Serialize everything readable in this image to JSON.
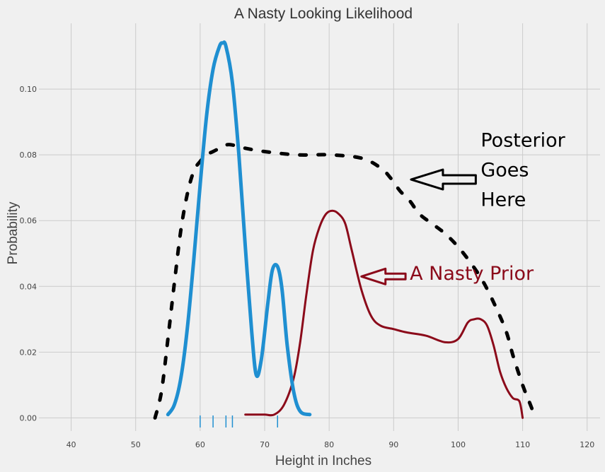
{
  "chart_data": {
    "type": "line",
    "title": "A Nasty Looking Likelihood",
    "xlabel": "Height in Inches",
    "ylabel": "Probability",
    "xlim": [
      35,
      122
    ],
    "ylim": [
      -0.004,
      0.12
    ],
    "grid": true,
    "xticks": [
      40,
      50,
      60,
      70,
      80,
      90,
      100,
      110,
      120
    ],
    "yticks": [
      0.0,
      0.02,
      0.04,
      0.06,
      0.08,
      0.1
    ],
    "ytick_labels": [
      "0.00",
      "0.02",
      "0.04",
      "0.06",
      "0.08",
      "0.10"
    ],
    "series": [
      {
        "style": "solid-blue",
        "color": "#1f8fd1",
        "x": [
          55,
          56,
          57,
          58,
          59,
          60,
          61,
          62,
          63,
          63.5,
          64,
          65,
          66,
          67,
          68,
          68.7,
          69.5,
          70.5,
          71.2,
          72,
          72.7,
          73.5,
          74.5,
          75.5,
          77
        ],
        "y": [
          0.001,
          0.004,
          0.012,
          0.027,
          0.048,
          0.071,
          0.092,
          0.106,
          0.113,
          0.114,
          0.113,
          0.102,
          0.08,
          0.052,
          0.026,
          0.013,
          0.018,
          0.035,
          0.045,
          0.046,
          0.039,
          0.022,
          0.008,
          0.002,
          0.001
        ]
      },
      {
        "style": "dashed-black",
        "color": "#000000",
        "x": [
          53,
          54,
          55,
          56,
          57,
          58,
          59,
          60,
          61,
          62,
          63,
          64,
          65,
          67,
          70,
          75,
          80,
          85,
          88,
          89.5,
          91,
          92.5,
          94,
          96,
          98,
          100,
          102,
          104,
          106,
          107.5,
          108.5,
          110,
          111,
          112
        ],
        "y": [
          0.0,
          0.008,
          0.024,
          0.041,
          0.057,
          0.068,
          0.075,
          0.078,
          0.08,
          0.081,
          0.082,
          0.083,
          0.083,
          0.082,
          0.081,
          0.08,
          0.08,
          0.079,
          0.076,
          0.073,
          0.069,
          0.066,
          0.062,
          0.059,
          0.056,
          0.052,
          0.047,
          0.041,
          0.033,
          0.026,
          0.019,
          0.01,
          0.005,
          0.0
        ]
      },
      {
        "style": "solid-red",
        "color": "#8b0a1a",
        "x": [
          67,
          68.5,
          70,
          71.5,
          73,
          74.5,
          75.5,
          76.5,
          77.5,
          78.5,
          79.5,
          80.5,
          81.5,
          82.5,
          83.5,
          85,
          86.5,
          88,
          90,
          92,
          95,
          98,
          100,
          101.5,
          102.5,
          103.5,
          104.5,
          105.5,
          106.5,
          107.5,
          108.5,
          109.5,
          110
        ],
        "y": [
          0.001,
          0.001,
          0.001,
          0.001,
          0.004,
          0.012,
          0.023,
          0.038,
          0.051,
          0.058,
          0.062,
          0.063,
          0.062,
          0.059,
          0.051,
          0.039,
          0.031,
          0.028,
          0.027,
          0.026,
          0.025,
          0.023,
          0.024,
          0.029,
          0.03,
          0.03,
          0.028,
          0.022,
          0.014,
          0.009,
          0.006,
          0.005,
          0.0
        ]
      }
    ],
    "rug": {
      "color": "#1f8fd1",
      "x": [
        60,
        62,
        64,
        65,
        72
      ]
    },
    "annotations": [
      {
        "id": "posterior",
        "lines": [
          "Posterior",
          "Goes",
          "Here"
        ],
        "color": "#000000",
        "x": 103.5,
        "y": 0.0825,
        "arrow_to": [
          92.7,
          0.0725
        ]
      },
      {
        "id": "prior",
        "text": "A Nasty Prior",
        "color": "#8b0a1a",
        "x": 92.5,
        "y": 0.042,
        "arrow_to": [
          85,
          0.043
        ]
      }
    ]
  }
}
